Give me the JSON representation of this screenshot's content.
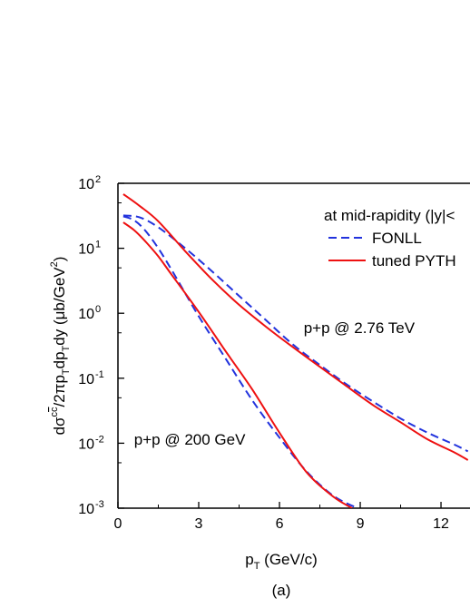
{
  "chart_data": {
    "type": "line",
    "title": "",
    "panel_label": "(a)",
    "xlabel": {
      "main": "p",
      "sub": "T",
      "rest": " (GeV/c)"
    },
    "ylabel": {
      "p1": "dσ",
      "sup1": "c",
      "p2": "/2πp",
      "sub2": "T",
      "p3": "dp",
      "sub3": "T",
      "p4": "dy (μb/GeV",
      "sup4": "2",
      "p5": ")"
    },
    "xlim": [
      0,
      13
    ],
    "ylim": [
      0.001,
      100
    ],
    "yscale": "log",
    "x_ticks": [
      0,
      3,
      6,
      9,
      12
    ],
    "y_ticks": [
      {
        "value": 0.001,
        "base": "10",
        "exp": "-3"
      },
      {
        "value": 0.01,
        "base": "10",
        "exp": "-2"
      },
      {
        "value": 0.1,
        "base": "10",
        "exp": "-1"
      },
      {
        "value": 1,
        "base": "10",
        "exp": "0"
      },
      {
        "value": 10,
        "base": "10",
        "exp": "1"
      },
      {
        "value": 100,
        "base": "10",
        "exp": "2"
      }
    ],
    "grid": false,
    "legend": {
      "placement": "top-right",
      "header": "at mid-rapidity (|y|<",
      "entries": [
        {
          "label": "FONLL",
          "color": "#2233dd",
          "dash": true
        },
        {
          "label": "tuned PYTH",
          "color": "#ee1111",
          "dash": false
        }
      ]
    },
    "annotations": [
      {
        "text": "p+p @ 2.76 TeV",
        "x": 6.9,
        "y": 0.5
      },
      {
        "text": "p+p @ 200 GeV",
        "x": 0.6,
        "y": 0.0095
      }
    ],
    "series": [
      {
        "group": "2.76 TeV",
        "style": "FONLL",
        "color": "#2233dd",
        "dash": true,
        "x": [
          0.2,
          0.8,
          1.5,
          2.5,
          3.5,
          4.5,
          5.5,
          6.5,
          7.5,
          8.5,
          9.5,
          10.5,
          11.5,
          12.5,
          13.0
        ],
        "y": [
          32,
          30,
          21,
          10,
          4.4,
          1.85,
          0.78,
          0.33,
          0.16,
          0.08,
          0.043,
          0.024,
          0.0145,
          0.0095,
          0.0075
        ]
      },
      {
        "group": "2.76 TeV",
        "style": "tuned PYTHIA",
        "color": "#ee1111",
        "dash": false,
        "x": [
          0.2,
          0.8,
          1.5,
          2.5,
          3.5,
          4.5,
          5.5,
          6.5,
          7.5,
          8.5,
          9.5,
          10.5,
          11.5,
          12.5,
          13.0
        ],
        "y": [
          68,
          45,
          26,
          9,
          3.3,
          1.35,
          0.62,
          0.3,
          0.15,
          0.075,
          0.038,
          0.021,
          0.0115,
          0.0072,
          0.0055
        ]
      },
      {
        "group": "200 GeV",
        "style": "FONLL",
        "color": "#2233dd",
        "dash": true,
        "x": [
          0.2,
          0.6,
          1.0,
          1.5,
          2.0,
          3.0,
          4.0,
          5.0,
          6.0,
          7.0,
          8.0,
          8.9
        ],
        "y": [
          31,
          27,
          19,
          10,
          4.6,
          0.9,
          0.2,
          0.045,
          0.0122,
          0.0037,
          0.00155,
          0.001
        ]
      },
      {
        "group": "200 GeV",
        "style": "tuned PYTHIA",
        "color": "#ee1111",
        "dash": false,
        "x": [
          0.2,
          0.6,
          1.0,
          1.5,
          2.0,
          3.0,
          4.0,
          5.0,
          6.0,
          7.0,
          8.0,
          8.7
        ],
        "y": [
          25,
          19,
          13,
          7.5,
          3.9,
          1.05,
          0.26,
          0.066,
          0.0145,
          0.0036,
          0.0015,
          0.001
        ]
      }
    ]
  }
}
